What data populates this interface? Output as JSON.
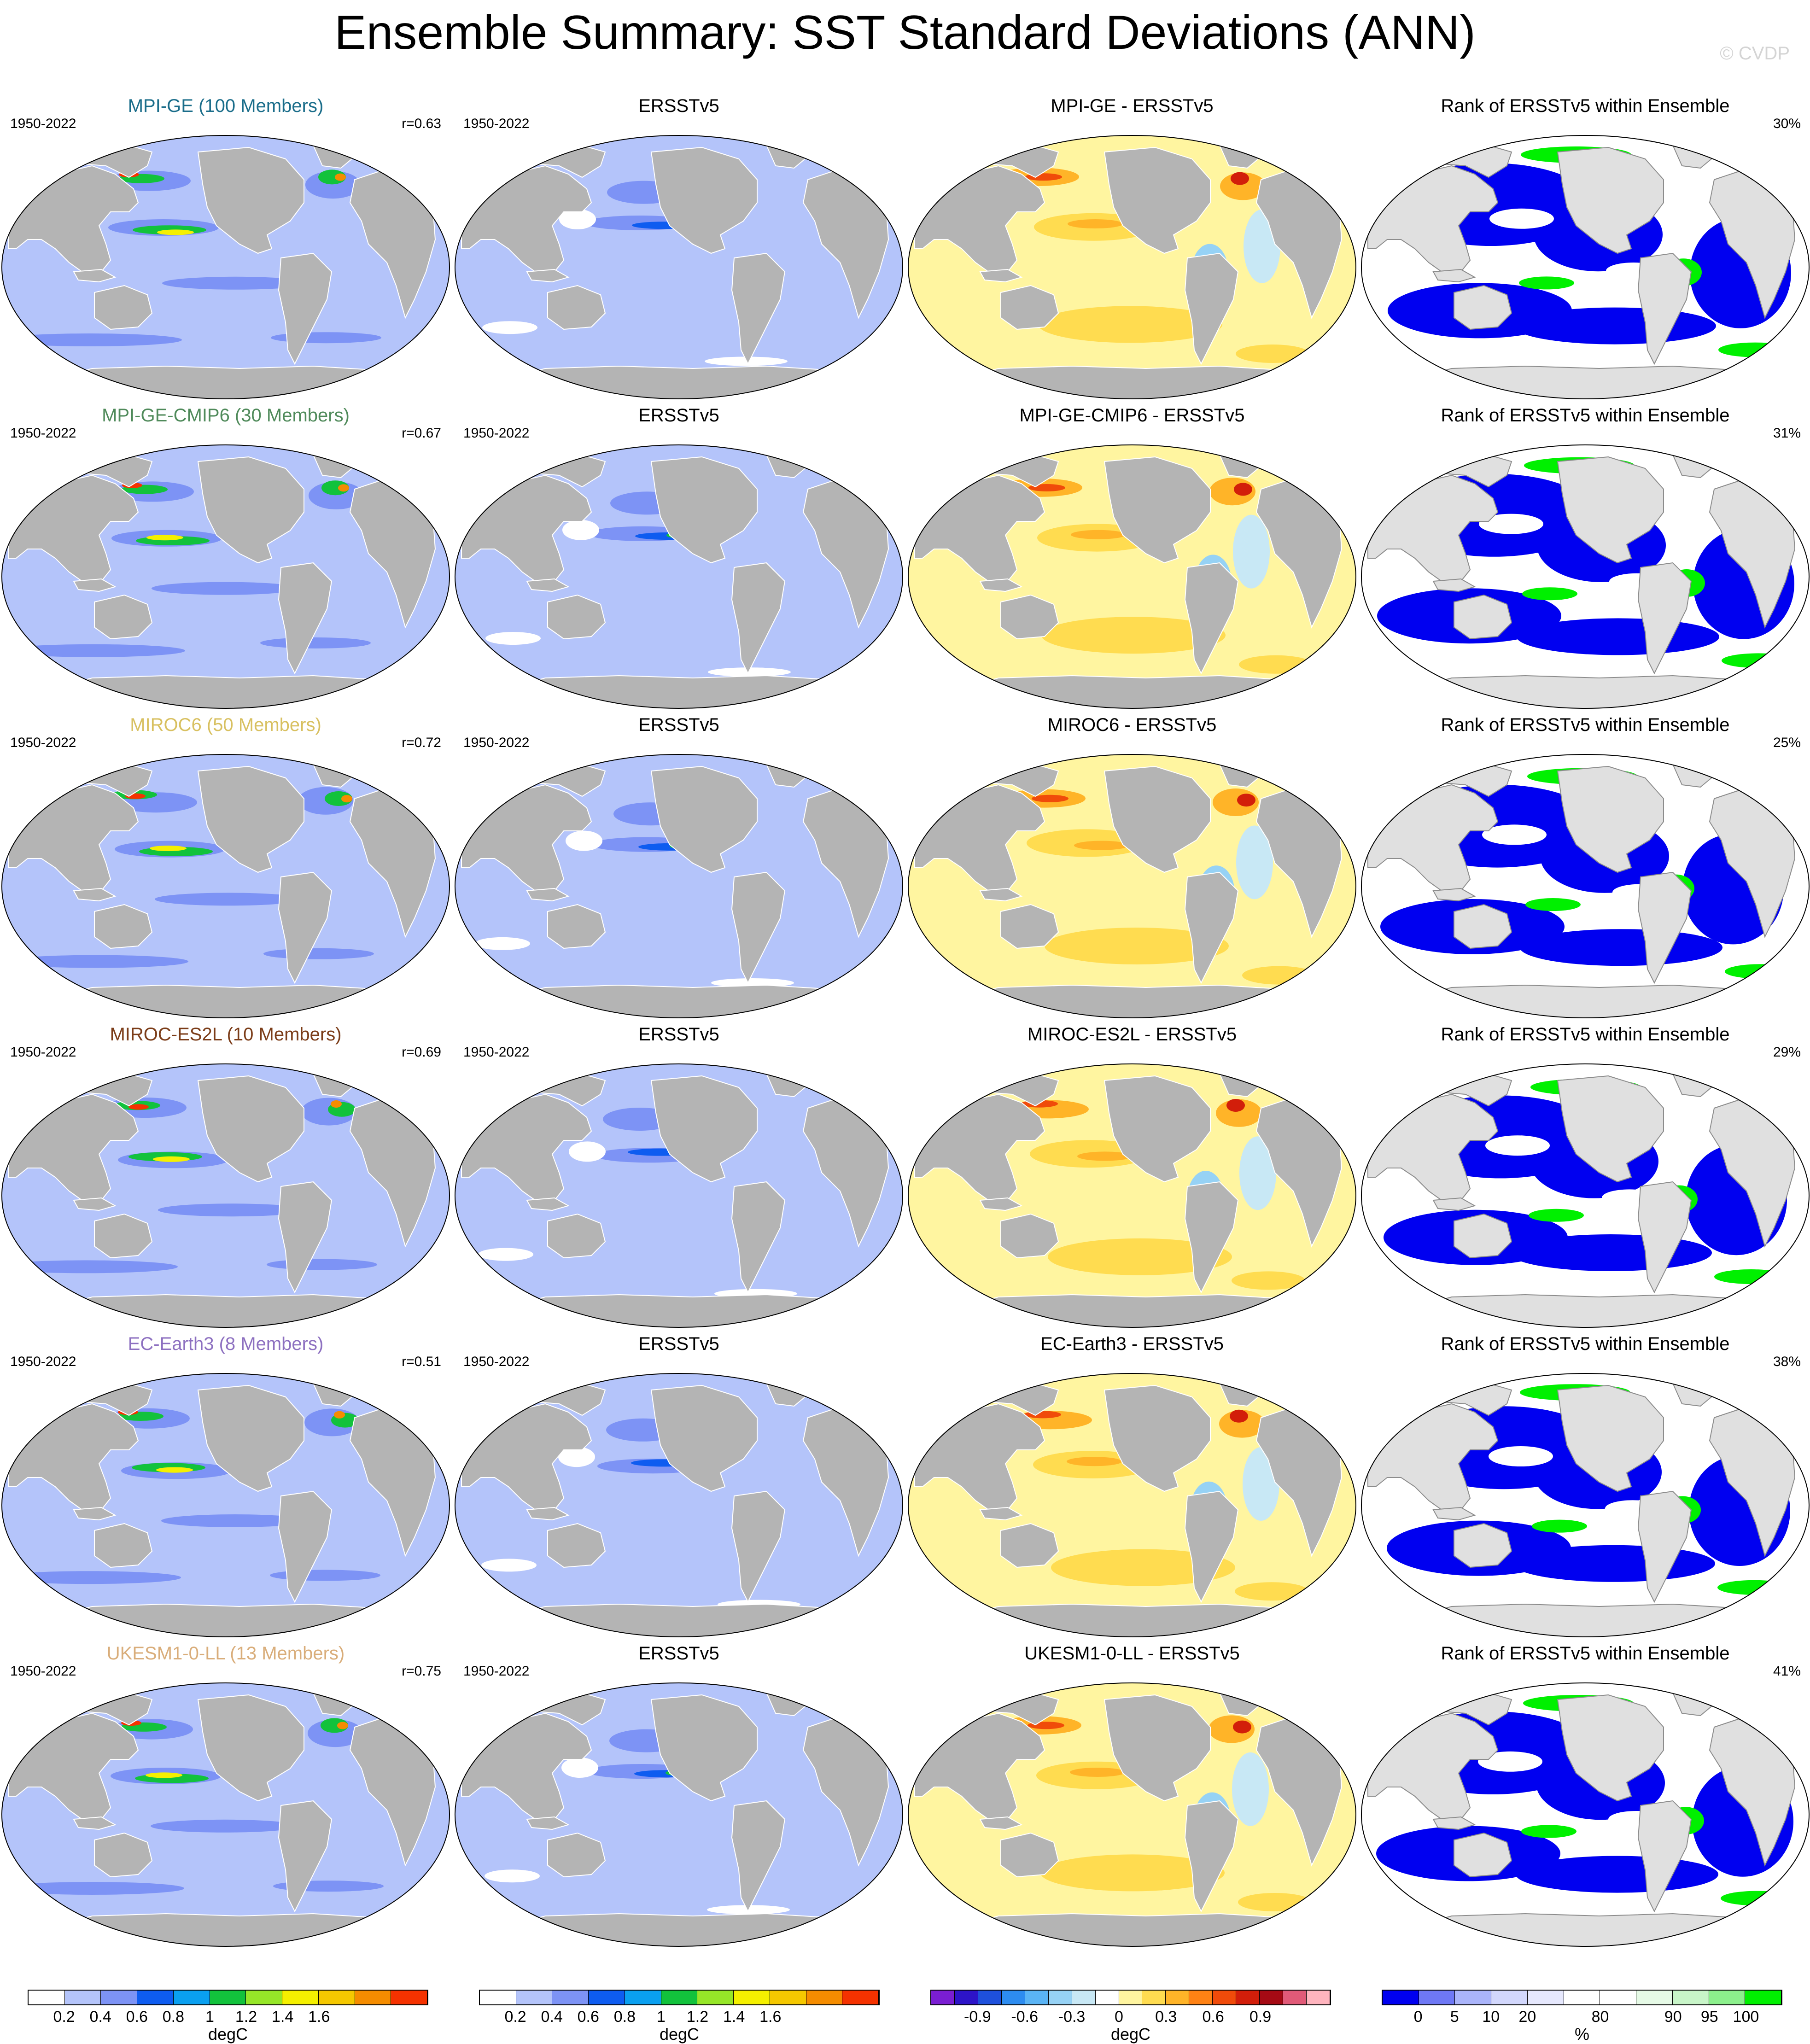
{
  "title": "Ensemble Summary: SST Standard Deviations (ANN)",
  "credit": "© CVDP",
  "rows": [
    {
      "model": "MPI-GE (100 Members)",
      "model_color": "#1a6d8a",
      "period": "1950-2022",
      "r": "r=0.63",
      "obs_title": "ERSSTv5",
      "diff_title": "MPI-GE - ERSSTv5",
      "rank_title": "Rank of ERSSTv5 within Ensemble",
      "rank_pct": "30%"
    },
    {
      "model": "MPI-GE-CMIP6 (30 Members)",
      "model_color": "#4f8a5a",
      "period": "1950-2022",
      "r": "r=0.67",
      "obs_title": "ERSSTv5",
      "diff_title": "MPI-GE-CMIP6 - ERSSTv5",
      "rank_title": "Rank of ERSSTv5 within Ensemble",
      "rank_pct": "31%"
    },
    {
      "model": "MIROC6 (50 Members)",
      "model_color": "#d8c060",
      "period": "1950-2022",
      "r": "r=0.72",
      "obs_title": "ERSSTv5",
      "diff_title": "MIROC6 - ERSSTv5",
      "rank_title": "Rank of ERSSTv5 within Ensemble",
      "rank_pct": "25%"
    },
    {
      "model": "MIROC-ES2L (10 Members)",
      "model_color": "#7b3c18",
      "period": "1950-2022",
      "r": "r=0.69",
      "obs_title": "ERSSTv5",
      "diff_title": "MIROC-ES2L - ERSSTv5",
      "rank_title": "Rank of ERSSTv5 within Ensemble",
      "rank_pct": "29%"
    },
    {
      "model": "EC-Earth3 (8 Members)",
      "model_color": "#8d70c0",
      "period": "1950-2022",
      "r": "r=0.51",
      "obs_title": "ERSSTv5",
      "diff_title": "EC-Earth3 - ERSSTv5",
      "rank_title": "Rank of ERSSTv5 within Ensemble",
      "rank_pct": "38%"
    },
    {
      "model": "UKESM1-0-LL (13 Members)",
      "model_color": "#d9ad7a",
      "period": "1950-2022",
      "r": "r=0.75",
      "obs_title": "ERSSTv5",
      "diff_title": "UKESM1-0-LL - ERSSTv5",
      "rank_title": "Rank of ERSSTv5 within Ensemble",
      "rank_pct": "41%"
    }
  ],
  "colorbars": [
    {
      "unit": "degC",
      "colors": [
        "#ffffff",
        "#b4c4fa",
        "#7d93f5",
        "#0e5cf0",
        "#0aa0f0",
        "#12c23c",
        "#96e628",
        "#f5f000",
        "#f5c800",
        "#f58c00",
        "#f53200"
      ],
      "ticks": [
        "0.2",
        "0.4",
        "0.6",
        "0.8",
        "1",
        "1.2",
        "1.4",
        "1.6"
      ]
    },
    {
      "unit": "degC",
      "colors": [
        "#ffffff",
        "#b4c4fa",
        "#7d93f5",
        "#0e5cf0",
        "#0aa0f0",
        "#12c23c",
        "#96e628",
        "#f5f000",
        "#f5c800",
        "#f58c00",
        "#f53200"
      ],
      "ticks": [
        "0.2",
        "0.4",
        "0.6",
        "0.8",
        "1",
        "1.2",
        "1.4",
        "1.6"
      ]
    },
    {
      "unit": "degC",
      "colors": [
        "#7a1ed2",
        "#2d14c8",
        "#1e50dc",
        "#2d8cf0",
        "#5ab4f5",
        "#96d2f5",
        "#c8e8f5",
        "#ffffff",
        "#fff5a0",
        "#ffdc50",
        "#ffb428",
        "#ff8214",
        "#f04b0a",
        "#d21e0a",
        "#a50a14",
        "#e15a78",
        "#ffb4be"
      ],
      "ticks": [
        "-0.9",
        "-0.6",
        "-0.3",
        "0",
        "0.3",
        "0.6",
        "0.9"
      ]
    },
    {
      "unit": "%",
      "colors": [
        "#0000f0",
        "#6e78f5",
        "#aab4fa",
        "#d2d7fc",
        "#e6e8fd",
        "#ffffff",
        "#ffffff",
        "#e6fae6",
        "#c8f5c8",
        "#8cf08c",
        "#00f000"
      ],
      "ticks": [
        "0",
        "5",
        "10",
        "20",
        "80",
        "90",
        "95",
        "100"
      ]
    }
  ]
}
